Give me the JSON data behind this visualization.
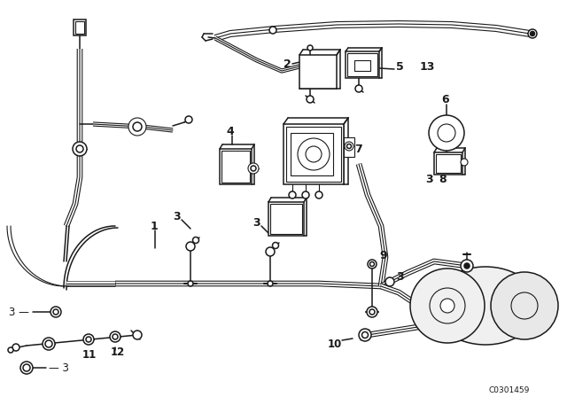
{
  "bg_color": "#ffffff",
  "line_color": "#1a1a1a",
  "watermark": "C0301459",
  "fig_width": 6.4,
  "fig_height": 4.48,
  "dpi": 100
}
